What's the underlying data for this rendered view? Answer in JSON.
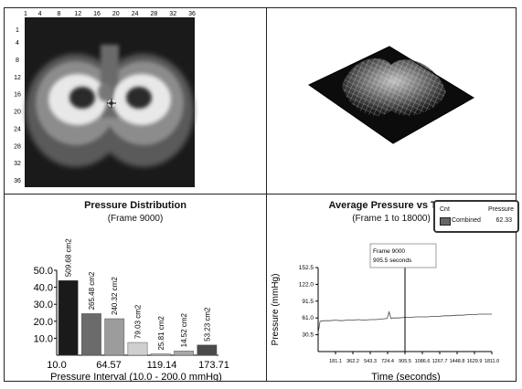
{
  "pressure_map": {
    "x_ticks": [
      "1",
      "4",
      "8",
      "12",
      "16",
      "20",
      "24",
      "28",
      "32",
      "36"
    ],
    "y_ticks": [
      "1",
      "4",
      "8",
      "12",
      "16",
      "20",
      "24",
      "28",
      "32",
      "36"
    ]
  },
  "chart_data": [
    {
      "type": "bar",
      "title": "Pressure Distribution",
      "subtitle": "(Frame 9000)",
      "xlabel": "Pressure Interval (10.0 - 200.0 mmHg)",
      "ylabel": "",
      "ylim": [
        0,
        50
      ],
      "y_ticks": [
        "10.0",
        "20.0",
        "30.0",
        "40.0",
        "50.0"
      ],
      "x_ticks": [
        "10.0",
        "64.57",
        "119.14",
        "173.71"
      ],
      "values": [
        44,
        24.5,
        21.5,
        7.5,
        0.8,
        2.5,
        6
      ],
      "data_labels": [
        "509.68 cm2",
        "265.48 cm2",
        "240.32 cm2",
        "79.03 cm2",
        "25.81 cm2",
        "14.52 cm2",
        "53.23 cm2"
      ],
      "colors": [
        "#1a1a1a",
        "#6b6b6b",
        "#9c9c9c",
        "#cfcfcf",
        "#bdbdbd",
        "#a9a9a9",
        "#4a4a4a"
      ]
    },
    {
      "type": "line",
      "title": "Average Pressure vs Time",
      "subtitle": "(Frame 1 to 18000)",
      "xlabel": "Time (seconds)",
      "ylabel": "Pressure (mmHg)",
      "y_ticks": [
        "30.5",
        "61.0",
        "91.5",
        "122.0",
        "152.5"
      ],
      "x_ticks": [
        "181.1",
        "362.2",
        "543.3",
        "724.4",
        "905.5",
        "1086.6",
        "1267.7",
        "1448.8",
        "1629.9",
        "1811.0"
      ],
      "xlim": [
        0,
        1811
      ],
      "ylim": [
        0,
        152.5
      ],
      "series": [
        {
          "name": "Combined",
          "x": [
            0,
            20,
            60,
            120,
            180,
            240,
            300,
            360,
            420,
            480,
            540,
            600,
            660,
            720,
            740,
            760,
            780,
            840,
            900,
            960,
            1020,
            1080,
            1140,
            1200,
            1260,
            1320,
            1380,
            1440,
            1500,
            1560,
            1620,
            1680,
            1740,
            1811
          ],
          "y": [
            34,
            55,
            56,
            56,
            57,
            56,
            57,
            57,
            58,
            57,
            58,
            58,
            59,
            60,
            72,
            60,
            61,
            61,
            62,
            62,
            63,
            63,
            63,
            64,
            64,
            65,
            65,
            66,
            66,
            67,
            67,
            68,
            68,
            68
          ]
        }
      ],
      "cursor": {
        "x": 905.5,
        "label_line1": "Frame 9000",
        "label_line2": "905.5 seconds"
      },
      "legend": {
        "header_left": "Cnt",
        "header_right": "Pressure",
        "entries": [
          {
            "name": "Combined",
            "value": "62.33",
            "color": "#666666"
          }
        ]
      }
    }
  ]
}
